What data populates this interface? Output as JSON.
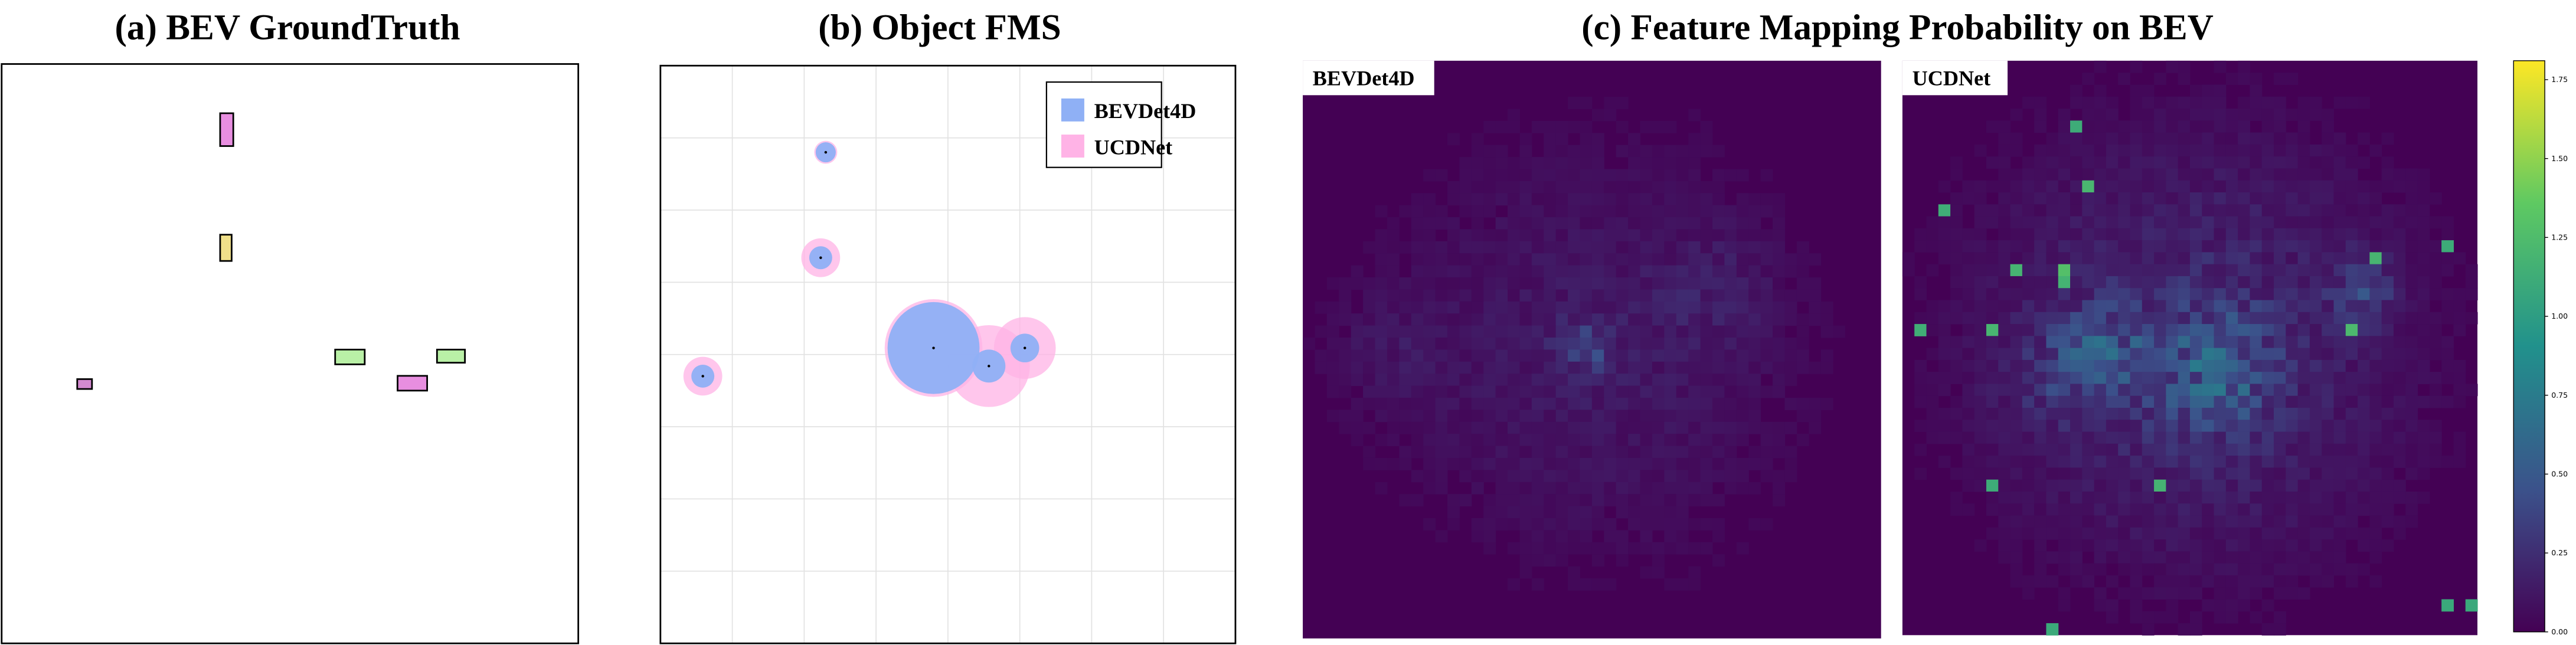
{
  "chart_data": [
    {
      "type": "boxes",
      "title": "(a) BEV GroundTruth"
    },
    {
      "type": "bubble",
      "title": "(b) Object FMS",
      "xlim": [
        0,
        8
      ],
      "ylim": [
        0,
        8
      ],
      "xticks": [
        0,
        1,
        2,
        3,
        4,
        5,
        6,
        7,
        8
      ],
      "yticks": [
        0,
        1,
        2,
        3,
        4,
        5,
        6,
        7,
        8
      ],
      "grid": true,
      "legend": "upper right",
      "series": [
        {
          "name": "BEVDet4D",
          "color": "#8fb0f5",
          "x": [
            2.3,
            2.23,
            0.59,
            3.8,
            4.57,
            5.07
          ],
          "y": [
            6.8,
            5.34,
            3.7,
            4.09,
            3.84,
            4.09
          ],
          "sizes": [
            0.14,
            0.16,
            0.16,
            0.64,
            0.23,
            0.2
          ]
        },
        {
          "name": "UCDNet",
          "color": "#ffb3e6",
          "x": [
            2.3,
            2.23,
            0.59,
            3.8,
            4.57,
            5.07
          ],
          "y": [
            6.8,
            5.34,
            3.7,
            4.09,
            3.84,
            4.09
          ],
          "sizes": [
            0.16,
            0.27,
            0.27,
            0.68,
            0.57,
            0.43
          ]
        }
      ]
    },
    {
      "type": "heatmap",
      "title": "(c) Feature Mapping Probability on BEV",
      "panels": [
        "BEVDet4D",
        "UCDNet"
      ],
      "ylim": [
        0,
        1.81
      ],
      "yticks": [
        {
          "value": 0,
          "label": "0.00"
        },
        {
          "value": 0.25,
          "label": "0.25"
        },
        {
          "value": 0.5,
          "label": "0.50"
        },
        {
          "value": 0.75,
          "label": "0.75"
        },
        {
          "value": 1,
          "label": "1.00"
        },
        {
          "value": 1.25,
          "label": "1.25"
        },
        {
          "value": 1.5,
          "label": "1.50"
        },
        {
          "value": 1.75,
          "label": "1.75"
        }
      ]
    }
  ]
}
